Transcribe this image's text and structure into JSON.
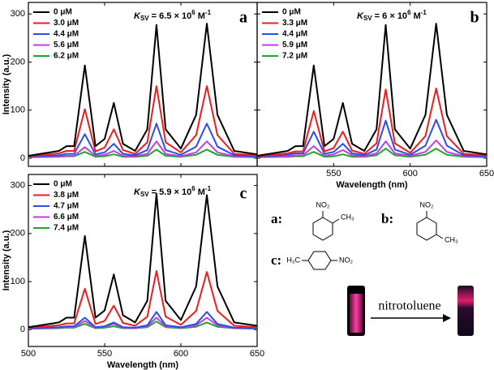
{
  "chart_data": [
    {
      "type": "line",
      "panel": "a",
      "ylabel": "Intensity (a.u.)",
      "annotation": {
        "symbol": "K",
        "sub": "SV",
        "text": " = 6.5 × 10",
        "exp": "6",
        "unit": " M",
        "unit_exp": "-1"
      },
      "xlim": [
        500,
        650
      ],
      "ylim": [
        -17,
        324
      ],
      "xticks": [
        500,
        550,
        600,
        650
      ],
      "xtick_labels": false,
      "yticks": [
        0,
        100,
        200,
        300
      ],
      "x": [
        500,
        520,
        525,
        530,
        537,
        544,
        550,
        556,
        562,
        570,
        578,
        584,
        590,
        600,
        610,
        617,
        624,
        635,
        650
      ],
      "series": [
        {
          "name": "0 μM",
          "color": "#000000",
          "values": [
            5,
            15,
            25,
            25,
            193,
            25,
            40,
            115,
            30,
            15,
            60,
            277,
            60,
            20,
            90,
            280,
            90,
            15,
            8
          ]
        },
        {
          "name": "3.0 μM",
          "color": "#ee1c1c",
          "values": [
            4,
            10,
            15,
            15,
            102,
            14,
            22,
            60,
            17,
            9,
            33,
            150,
            33,
            12,
            48,
            150,
            48,
            9,
            6
          ]
        },
        {
          "name": "4.4 μM",
          "color": "#2b4ee6",
          "values": [
            3,
            6,
            9,
            9,
            50,
            8,
            12,
            30,
            9,
            6,
            17,
            72,
            17,
            7,
            24,
            72,
            24,
            6,
            4
          ]
        },
        {
          "name": "5.6 μM",
          "color": "#c23de6",
          "values": [
            2,
            4,
            5,
            5,
            23,
            5,
            7,
            15,
            5,
            4,
            9,
            35,
            9,
            4,
            12,
            35,
            12,
            4,
            3
          ]
        },
        {
          "name": "6.2 μM",
          "color": "#22a52e",
          "values": [
            2,
            3,
            4,
            4,
            13,
            3,
            4,
            8,
            3,
            3,
            5,
            18,
            5,
            3,
            7,
            18,
            7,
            3,
            2
          ]
        }
      ]
    },
    {
      "type": "line",
      "panel": "b",
      "xlabel": "Wavelength (nm)",
      "annotation": {
        "symbol": "K",
        "sub": "SV",
        "text": " = 6 × 10",
        "exp": "6",
        "unit": " M",
        "unit_exp": "-1"
      },
      "xlim": [
        500,
        650
      ],
      "ylim": [
        -17,
        324
      ],
      "xticks": [
        550,
        600,
        650
      ],
      "yticks": [
        0,
        100,
        200,
        300
      ],
      "ytick_labels": false,
      "x": [
        500,
        520,
        525,
        530,
        537,
        544,
        550,
        556,
        562,
        570,
        578,
        584,
        590,
        600,
        610,
        617,
        624,
        635,
        650
      ],
      "series": [
        {
          "name": "0 μM",
          "color": "#000000",
          "values": [
            5,
            15,
            25,
            25,
            193,
            25,
            40,
            115,
            30,
            15,
            60,
            277,
            60,
            20,
            90,
            280,
            90,
            15,
            8
          ]
        },
        {
          "name": "3.3 μM",
          "color": "#ee1c1c",
          "values": [
            4,
            10,
            14,
            14,
            98,
            14,
            21,
            55,
            16,
            9,
            31,
            143,
            31,
            11,
            46,
            145,
            46,
            9,
            6
          ]
        },
        {
          "name": "4.4 μM",
          "color": "#2b4ee6",
          "values": [
            3,
            7,
            10,
            10,
            55,
            9,
            13,
            30,
            10,
            6,
            18,
            78,
            18,
            7,
            26,
            80,
            26,
            6,
            4
          ]
        },
        {
          "name": "5.9 μM",
          "color": "#c23de6",
          "values": [
            2,
            4,
            6,
            6,
            25,
            5,
            8,
            17,
            6,
            4,
            10,
            35,
            10,
            5,
            13,
            37,
            13,
            4,
            3
          ]
        },
        {
          "name": "7.2 μM",
          "color": "#22a52e",
          "values": [
            2,
            3,
            4,
            4,
            13,
            3,
            4,
            8,
            3,
            3,
            6,
            20,
            6,
            3,
            7,
            20,
            7,
            3,
            2
          ]
        }
      ]
    },
    {
      "type": "line",
      "panel": "c",
      "xlabel": "Wavelength (nm)",
      "ylabel": "Intensity (a.u.)",
      "annotation": {
        "symbol": "K",
        "sub": "SV",
        "text": " = 5.9 × 10",
        "exp": "6",
        "unit": " M",
        "unit_exp": "-1"
      },
      "xlim": [
        500,
        650
      ],
      "ylim": [
        -35,
        323
      ],
      "xticks": [
        500,
        550,
        600,
        650
      ],
      "yticks": [
        0,
        100,
        200,
        300
      ],
      "x": [
        500,
        520,
        525,
        530,
        537,
        544,
        550,
        556,
        562,
        570,
        578,
        584,
        590,
        600,
        610,
        617,
        624,
        635,
        650
      ],
      "series": [
        {
          "name": "0 μM",
          "color": "#000000",
          "values": [
            5,
            15,
            25,
            25,
            195,
            25,
            40,
            115,
            30,
            15,
            60,
            283,
            60,
            20,
            90,
            280,
            90,
            15,
            8
          ]
        },
        {
          "name": "3.8 μM",
          "color": "#ee1c1c",
          "values": [
            4,
            9,
            13,
            13,
            85,
            12,
            18,
            50,
            14,
            8,
            27,
            122,
            27,
            10,
            39,
            120,
            39,
            8,
            5
          ]
        },
        {
          "name": "4.7 μM",
          "color": "#2b4ee6",
          "values": [
            3,
            5,
            7,
            7,
            25,
            5,
            7,
            15,
            5,
            4,
            9,
            37,
            9,
            5,
            12,
            37,
            12,
            4,
            3
          ]
        },
        {
          "name": "6.6 μM",
          "color": "#c23de6",
          "values": [
            2,
            4,
            5,
            5,
            18,
            4,
            6,
            12,
            4,
            3,
            7,
            25,
            7,
            4,
            9,
            25,
            9,
            3,
            3
          ]
        },
        {
          "name": "7.4 μM",
          "color": "#22a52e",
          "values": [
            2,
            3,
            4,
            4,
            12,
            3,
            4,
            7,
            3,
            3,
            5,
            17,
            5,
            3,
            6,
            15,
            6,
            3,
            2
          ]
        }
      ]
    }
  ],
  "structures": [
    {
      "label": "a:",
      "substituents": [
        "NO₂",
        "CH₃"
      ]
    },
    {
      "label": "b:",
      "substituents": [
        "NO₂",
        "CH₃"
      ]
    },
    {
      "label": "c:",
      "substituents": [
        "H₃C",
        "NO₂"
      ]
    }
  ],
  "photo": {
    "arrow_text": "nitrotoluene"
  }
}
